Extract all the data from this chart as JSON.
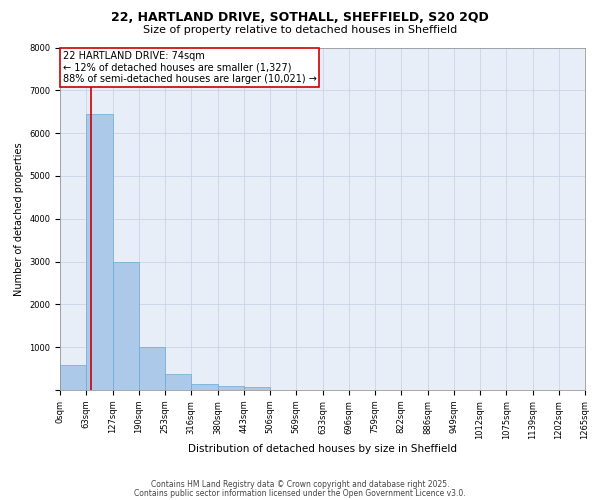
{
  "title1": "22, HARTLAND DRIVE, SOTHALL, SHEFFIELD, S20 2QD",
  "title2": "Size of property relative to detached houses in Sheffield",
  "xlabel": "Distribution of detached houses by size in Sheffield",
  "ylabel": "Number of detached properties",
  "bar_values": [
    580,
    6450,
    3000,
    1000,
    370,
    150,
    100,
    70,
    0,
    0,
    0,
    0,
    0,
    0,
    0,
    0,
    0,
    0,
    0,
    0
  ],
  "bin_edges": [
    0,
    63,
    127,
    190,
    253,
    316,
    380,
    443,
    506,
    569,
    633,
    696,
    759,
    822,
    886,
    949,
    1012,
    1075,
    1139,
    1202,
    1265
  ],
  "tick_labels": [
    "0sqm",
    "63sqm",
    "127sqm",
    "190sqm",
    "253sqm",
    "316sqm",
    "380sqm",
    "443sqm",
    "506sqm",
    "569sqm",
    "633sqm",
    "696sqm",
    "759sqm",
    "822sqm",
    "886sqm",
    "949sqm",
    "1012sqm",
    "1075sqm",
    "1139sqm",
    "1202sqm",
    "1265sqm"
  ],
  "bar_color": "#adc9e9",
  "bar_edge_color": "#6aaad4",
  "grid_color": "#c8d4e8",
  "background_color": "#e8eef8",
  "red_line_x": 74,
  "annotation_text": "22 HARTLAND DRIVE: 74sqm\n← 12% of detached houses are smaller (1,327)\n88% of semi-detached houses are larger (10,021) →",
  "annotation_box_color": "#cc0000",
  "footer_line1": "Contains HM Land Registry data © Crown copyright and database right 2025.",
  "footer_line2": "Contains public sector information licensed under the Open Government Licence v3.0.",
  "ylim": [
    0,
    8000
  ],
  "yticks": [
    0,
    1000,
    2000,
    3000,
    4000,
    5000,
    6000,
    7000,
    8000
  ],
  "title1_fontsize": 9,
  "title2_fontsize": 8,
  "tick_fontsize": 6,
  "ylabel_fontsize": 7,
  "xlabel_fontsize": 7.5,
  "annotation_fontsize": 7,
  "footer_fontsize": 5.5
}
